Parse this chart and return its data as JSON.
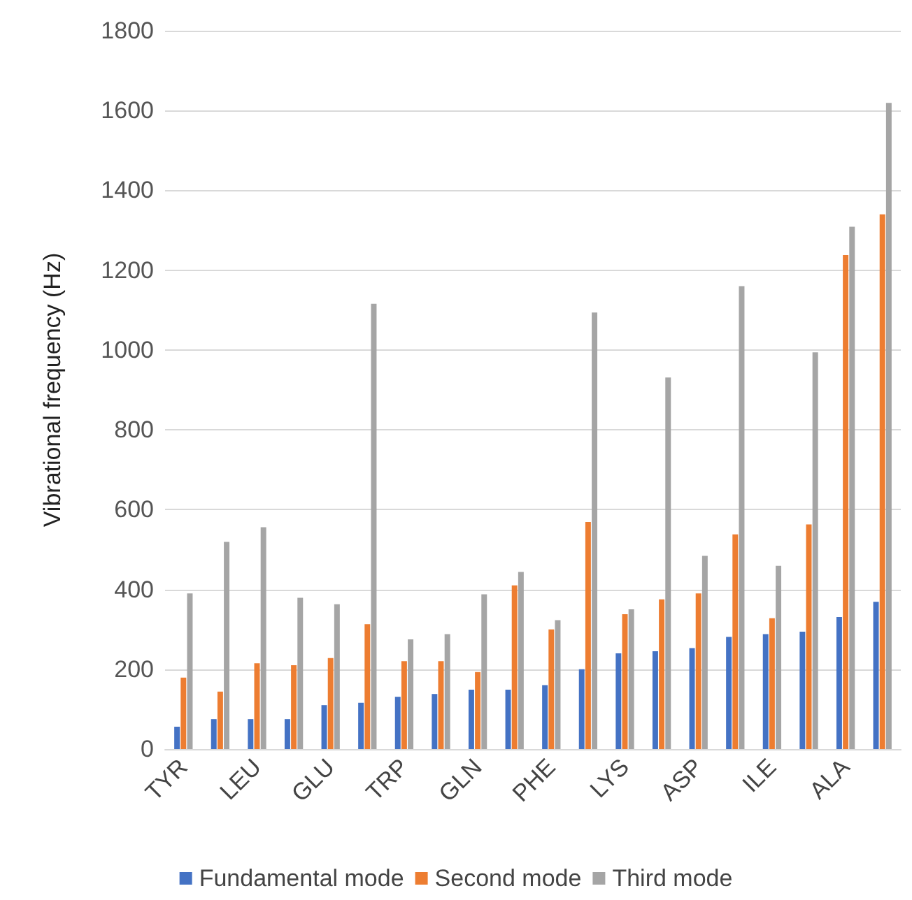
{
  "chart_data": {
    "type": "bar",
    "ylabel": "Vibrational frequency (Hz)",
    "categories": [
      "TYR",
      null,
      "LEU",
      null,
      "GLU",
      null,
      "TRP",
      null,
      "GLN",
      null,
      "PHE",
      null,
      "LYS",
      null,
      "ASP",
      null,
      "ILE",
      null,
      "ALA",
      null
    ],
    "series": [
      {
        "name": "Fundamental mode",
        "color": "#4472c4",
        "values": [
          56,
          75,
          75,
          75,
          110,
          116,
          131,
          138,
          149,
          149,
          160,
          200,
          240,
          245,
          253,
          281,
          288,
          294,
          331,
          369
        ]
      },
      {
        "name": "Second mode",
        "color": "#ed7d31",
        "values": [
          179,
          144,
          215,
          210,
          228,
          313,
          220,
          220,
          193,
          410,
          300,
          569,
          338,
          375,
          390,
          538,
          328,
          563,
          1238,
          1340
        ]
      },
      {
        "name": "Third mode",
        "color": "#a5a5a5",
        "values": [
          390,
          519,
          556,
          379,
          363,
          1116,
          275,
          288,
          388,
          444,
          323,
          1094,
          350,
          931,
          484,
          1160,
          459,
          994,
          1309,
          1619
        ]
      }
    ],
    "ylim": [
      0,
      1800
    ],
    "yticks": [
      0,
      200,
      400,
      600,
      800,
      1000,
      1200,
      1400,
      1600,
      1800
    ],
    "grid": "y",
    "legend": "bottom"
  }
}
